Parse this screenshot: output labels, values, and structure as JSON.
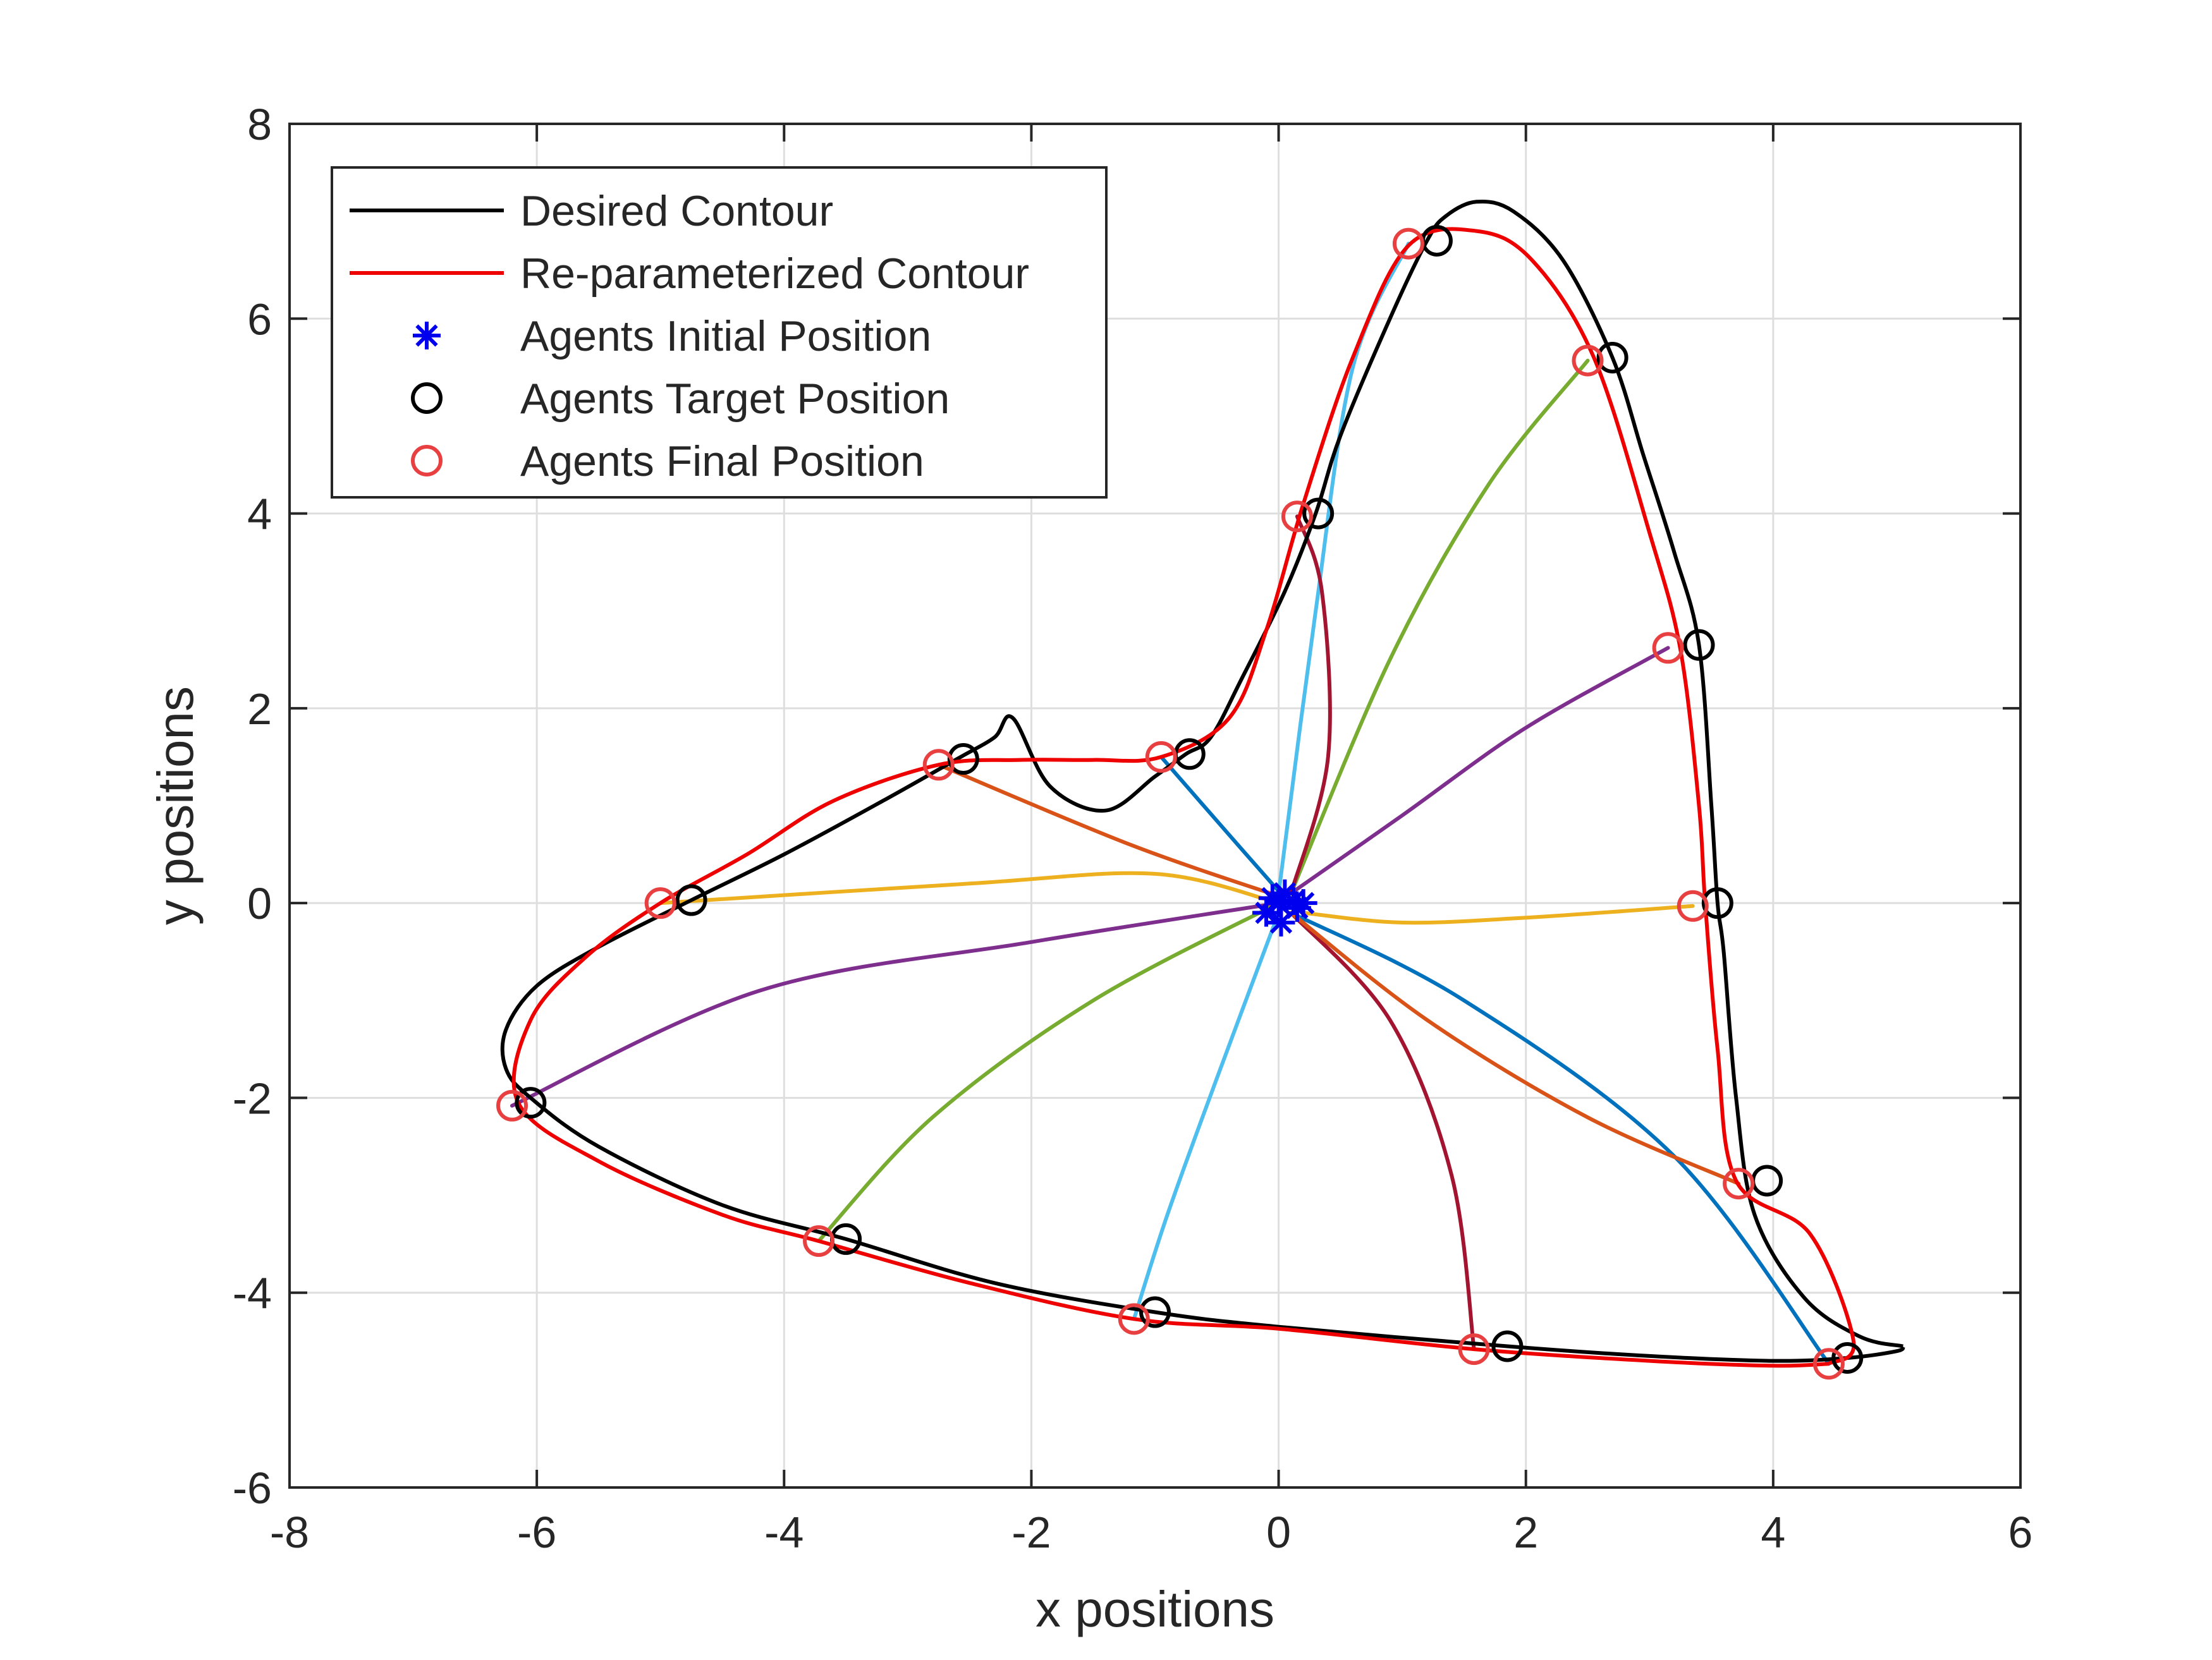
{
  "chart_data": {
    "type": "line",
    "title": "",
    "xlabel": "x positions",
    "ylabel": "y positions",
    "xlim": [
      -8,
      6
    ],
    "ylim": [
      -6,
      8
    ],
    "xticks": [
      -8,
      -6,
      -4,
      -2,
      0,
      2,
      4,
      6
    ],
    "yticks": [
      -6,
      -4,
      -2,
      0,
      2,
      4,
      6,
      8
    ],
    "xtick_labels": [
      "-8",
      "-6",
      "-4",
      "-2",
      "0",
      "2",
      "4",
      "6"
    ],
    "ytick_labels": [
      "-6",
      "-4",
      "-2",
      "0",
      "2",
      "4",
      "6",
      "8"
    ],
    "grid": true,
    "legend": {
      "placement": "top-left",
      "entries": [
        {
          "label": "Desired Contour",
          "kind": "line",
          "color": "#000000"
        },
        {
          "label": "Re-parameterized Contour",
          "kind": "line",
          "color": "#ee0000"
        },
        {
          "label": "Agents Initial Position",
          "kind": "star",
          "color": "#0000ee"
        },
        {
          "label": "Agents Target Position",
          "kind": "circle",
          "color": "#000000"
        },
        {
          "label": "Agents Final Position",
          "kind": "circle",
          "color": "#e84040"
        }
      ]
    },
    "desired_contour": {
      "color": "#000000",
      "points": [
        [
          5.05,
          -4.55
        ],
        [
          4.7,
          -4.45
        ],
        [
          4.25,
          -4.05
        ],
        [
          3.85,
          -3.2
        ],
        [
          3.7,
          -2.0
        ],
        [
          3.6,
          -0.5
        ],
        [
          3.55,
          0.0
        ],
        [
          3.5,
          1.0
        ],
        [
          3.4,
          2.65
        ],
        [
          3.2,
          3.6
        ],
        [
          2.95,
          4.6
        ],
        [
          2.7,
          5.6
        ],
        [
          2.3,
          6.6
        ],
        [
          1.9,
          7.1
        ],
        [
          1.6,
          7.2
        ],
        [
          1.35,
          7.05
        ],
        [
          1.2,
          6.8
        ],
        [
          0.9,
          6.0
        ],
        [
          0.5,
          4.8
        ],
        [
          0.3,
          4.0
        ],
        [
          0.05,
          3.2
        ],
        [
          -0.3,
          2.3
        ],
        [
          -0.55,
          1.7
        ],
        [
          -0.75,
          1.53
        ],
        [
          -1.0,
          1.3
        ],
        [
          -1.4,
          0.95
        ],
        [
          -1.85,
          1.2
        ],
        [
          -2.15,
          1.9
        ],
        [
          -2.3,
          1.7
        ],
        [
          -2.6,
          1.48
        ],
        [
          -3.2,
          1.05
        ],
        [
          -4.0,
          0.5
        ],
        [
          -4.75,
          0.03
        ],
        [
          -5.5,
          -0.45
        ],
        [
          -6.0,
          -0.85
        ],
        [
          -6.25,
          -1.3
        ],
        [
          -6.25,
          -1.7
        ],
        [
          -6.05,
          -2.0
        ],
        [
          -5.5,
          -2.5
        ],
        [
          -4.5,
          -3.1
        ],
        [
          -3.5,
          -3.45
        ],
        [
          -2.3,
          -3.9
        ],
        [
          -1.0,
          -4.2
        ],
        [
          0.0,
          -4.35
        ],
        [
          1.85,
          -4.55
        ],
        [
          3.0,
          -4.65
        ],
        [
          4.0,
          -4.7
        ],
        [
          4.6,
          -4.67
        ],
        [
          5.0,
          -4.6
        ],
        [
          5.05,
          -4.55
        ]
      ]
    },
    "reparam_contour": {
      "color": "#ee0000",
      "points": [
        [
          4.45,
          -4.73
        ],
        [
          4.65,
          -4.5
        ],
        [
          4.3,
          -3.4
        ],
        [
          3.7,
          -2.85
        ],
        [
          3.55,
          -1.5
        ],
        [
          3.45,
          0.0
        ],
        [
          3.4,
          1.0
        ],
        [
          3.25,
          2.6
        ],
        [
          3.0,
          3.8
        ],
        [
          2.55,
          5.6
        ],
        [
          2.05,
          6.6
        ],
        [
          1.6,
          6.9
        ],
        [
          1.05,
          6.75
        ],
        [
          0.6,
          5.6
        ],
        [
          0.2,
          4.1
        ],
        [
          -0.1,
          2.8
        ],
        [
          -0.4,
          1.9
        ],
        [
          -0.95,
          1.5
        ],
        [
          -1.5,
          1.47
        ],
        [
          -2.1,
          1.47
        ],
        [
          -2.75,
          1.42
        ],
        [
          -3.6,
          1.05
        ],
        [
          -4.3,
          0.5
        ],
        [
          -5.0,
          0.0
        ],
        [
          -5.6,
          -0.55
        ],
        [
          -6.05,
          -1.2
        ],
        [
          -6.15,
          -2.05
        ],
        [
          -5.5,
          -2.65
        ],
        [
          -4.5,
          -3.2
        ],
        [
          -3.72,
          -3.47
        ],
        [
          -2.5,
          -3.9
        ],
        [
          -1.17,
          -4.27
        ],
        [
          0.0,
          -4.37
        ],
        [
          1.58,
          -4.58
        ],
        [
          3.0,
          -4.7
        ],
        [
          4.0,
          -4.75
        ],
        [
          4.45,
          -4.73
        ]
      ]
    },
    "initial_positions": [
      [
        0.0,
        0.0
      ],
      [
        0.05,
        0.1
      ],
      [
        -0.1,
        -0.1
      ],
      [
        0.12,
        0.02
      ],
      [
        0.02,
        -0.2
      ],
      [
        0.15,
        -0.05
      ],
      [
        -0.05,
        0.05
      ],
      [
        0.2,
        0.0
      ]
    ],
    "target_positions": [
      [
        3.55,
        0.0
      ],
      [
        3.4,
        2.65
      ],
      [
        2.7,
        5.6
      ],
      [
        1.28,
        6.8
      ],
      [
        0.32,
        4.0
      ],
      [
        -0.72,
        1.53
      ],
      [
        -2.55,
        1.48
      ],
      [
        -4.75,
        0.03
      ],
      [
        -6.05,
        -2.05
      ],
      [
        -3.5,
        -3.45
      ],
      [
        -1.0,
        -4.2
      ],
      [
        1.85,
        -4.55
      ],
      [
        4.6,
        -4.67
      ],
      [
        3.95,
        -2.85
      ]
    ],
    "final_positions": [
      [
        3.35,
        -0.03
      ],
      [
        3.15,
        2.62
      ],
      [
        2.5,
        5.57
      ],
      [
        1.05,
        6.77
      ],
      [
        0.15,
        3.97
      ],
      [
        -0.95,
        1.5
      ],
      [
        -2.75,
        1.42
      ],
      [
        -5.0,
        0.0
      ],
      [
        -6.2,
        -2.08
      ],
      [
        -3.72,
        -3.47
      ],
      [
        -1.17,
        -4.27
      ],
      [
        1.58,
        -4.58
      ],
      [
        4.45,
        -4.73
      ],
      [
        3.72,
        -2.88
      ]
    ],
    "trajectories": [
      {
        "color": "#edb120",
        "points": [
          [
            0.2,
            -0.1
          ],
          [
            1.0,
            -0.2
          ],
          [
            2.0,
            -0.15
          ],
          [
            3.35,
            -0.03
          ]
        ]
      },
      {
        "color": "#7e2f8e",
        "points": [
          [
            0.1,
            0.1
          ],
          [
            1.0,
            0.9
          ],
          [
            2.0,
            1.8
          ],
          [
            3.15,
            2.62
          ]
        ]
      },
      {
        "color": "#77ac30",
        "points": [
          [
            0.1,
            0.1
          ],
          [
            0.9,
            2.5
          ],
          [
            1.7,
            4.3
          ],
          [
            2.5,
            5.57
          ]
        ]
      },
      {
        "color": "#4dbeee",
        "points": [
          [
            0.0,
            0.1
          ],
          [
            0.3,
            3.0
          ],
          [
            0.6,
            5.5
          ],
          [
            1.05,
            6.77
          ]
        ]
      },
      {
        "color": "#a2142f",
        "points": [
          [
            0.1,
            0.1
          ],
          [
            0.4,
            1.5
          ],
          [
            0.35,
            3.2
          ],
          [
            0.15,
            3.97
          ]
        ]
      },
      {
        "color": "#0072bd",
        "points": [
          [
            0.05,
            0.05
          ],
          [
            -0.4,
            0.7
          ],
          [
            -0.95,
            1.5
          ]
        ]
      },
      {
        "color": "#d95319",
        "points": [
          [
            0.05,
            0.05
          ],
          [
            -1.2,
            0.6
          ],
          [
            -2.75,
            1.42
          ]
        ]
      },
      {
        "color": "#edb120",
        "points": [
          [
            0.0,
            0.0
          ],
          [
            -1.0,
            0.3
          ],
          [
            -2.5,
            0.2
          ],
          [
            -5.0,
            0.0
          ]
        ]
      },
      {
        "color": "#7e2f8e",
        "points": [
          [
            0.0,
            0.0
          ],
          [
            -2.0,
            -0.4
          ],
          [
            -4.2,
            -0.9
          ],
          [
            -6.2,
            -2.08
          ]
        ]
      },
      {
        "color": "#77ac30",
        "points": [
          [
            0.0,
            0.0
          ],
          [
            -1.5,
            -1.0
          ],
          [
            -2.8,
            -2.2
          ],
          [
            -3.72,
            -3.47
          ]
        ]
      },
      {
        "color": "#4dbeee",
        "points": [
          [
            0.0,
            -0.1
          ],
          [
            -0.5,
            -1.8
          ],
          [
            -0.9,
            -3.2
          ],
          [
            -1.17,
            -4.27
          ]
        ]
      },
      {
        "color": "#a2142f",
        "points": [
          [
            0.1,
            -0.1
          ],
          [
            0.9,
            -1.2
          ],
          [
            1.4,
            -2.8
          ],
          [
            1.58,
            -4.58
          ]
        ]
      },
      {
        "color": "#0072bd",
        "points": [
          [
            0.1,
            -0.1
          ],
          [
            1.5,
            -1.0
          ],
          [
            3.2,
            -2.6
          ],
          [
            4.45,
            -4.73
          ]
        ]
      },
      {
        "color": "#d95319",
        "points": [
          [
            0.1,
            -0.1
          ],
          [
            1.2,
            -1.2
          ],
          [
            2.5,
            -2.2
          ],
          [
            3.72,
            -2.88
          ]
        ]
      }
    ]
  }
}
